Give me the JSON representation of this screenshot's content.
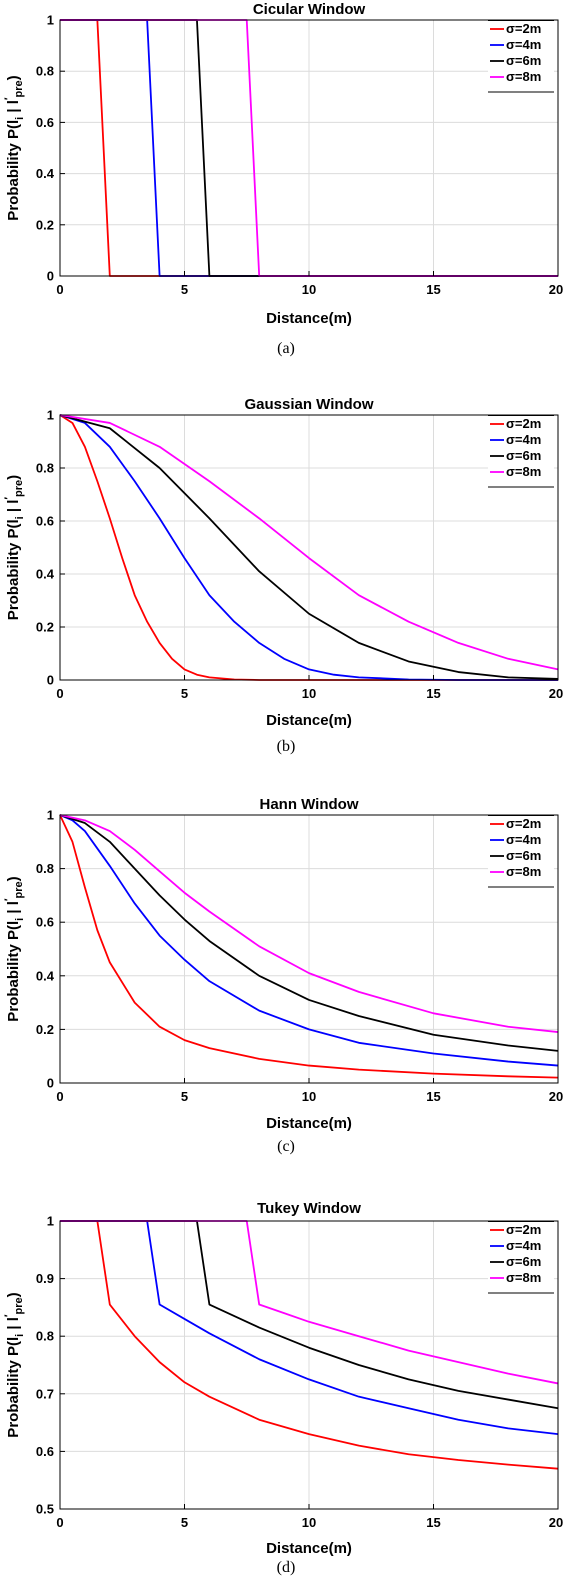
{
  "chart_data": [
    {
      "type": "line",
      "title": "Cicular Window",
      "xlabel": "Distance(m)",
      "ylabel": "Probability P(l_i | l'_pre)",
      "ylabel_main": "Probability P(l",
      "ylabel_sub1": "i",
      "ylabel_mid": " | l",
      "ylabel_sup": "′",
      "ylabel_sub2": "pre",
      "ylabel_end": ")",
      "caption": "(a)",
      "xlim": [
        0,
        20
      ],
      "ylim": [
        0,
        1
      ],
      "xticks": [
        0,
        5,
        10,
        15,
        20
      ],
      "yticks": [
        0,
        0.2,
        0.4,
        0.6,
        0.8,
        1
      ],
      "ytick_labels": [
        "0",
        "0.2",
        "0.4",
        "0.6",
        "0.8",
        "1"
      ],
      "grid": true,
      "legend_position": "top-right",
      "series": [
        {
          "name": "σ=2m",
          "color": "#ff0000",
          "x": [
            0,
            1.5,
            2,
            20
          ],
          "y": [
            1,
            1,
            0,
            0
          ]
        },
        {
          "name": "σ=4m",
          "color": "#0000ff",
          "x": [
            0,
            3.5,
            4,
            20
          ],
          "y": [
            1,
            1,
            0,
            0
          ]
        },
        {
          "name": "σ=6m",
          "color": "#000000",
          "x": [
            0,
            5.5,
            6,
            20
          ],
          "y": [
            1,
            1,
            0,
            0
          ]
        },
        {
          "name": "σ=8m",
          "color": "#ff00ff",
          "x": [
            0,
            7.5,
            8,
            20
          ],
          "y": [
            1,
            1,
            0,
            0
          ]
        }
      ]
    },
    {
      "type": "line",
      "title": "Gaussian Window",
      "xlabel": "Distance(m)",
      "ylabel": "Probability P(l_i | l'_pre)",
      "ylabel_main": "Probability P(l",
      "ylabel_sub1": "i",
      "ylabel_mid": " | l",
      "ylabel_sup": "′",
      "ylabel_sub2": "pre",
      "ylabel_end": ")",
      "caption": "(b)",
      "xlim": [
        0,
        20
      ],
      "ylim": [
        0,
        1
      ],
      "xticks": [
        0,
        5,
        10,
        15,
        20
      ],
      "yticks": [
        0,
        0.2,
        0.4,
        0.6,
        0.8,
        1
      ],
      "ytick_labels": [
        "0",
        "0.2",
        "0.4",
        "0.6",
        "0.8",
        "1"
      ],
      "grid": true,
      "legend_position": "top-right",
      "series": [
        {
          "name": "σ=2m",
          "color": "#ff0000",
          "x": [
            0,
            0.5,
            1,
            1.5,
            2,
            2.5,
            3,
            3.5,
            4,
            4.5,
            5,
            5.5,
            6,
            7,
            8,
            10,
            20
          ],
          "y": [
            1,
            0.97,
            0.88,
            0.75,
            0.61,
            0.46,
            0.32,
            0.22,
            0.14,
            0.08,
            0.04,
            0.02,
            0.01,
            0.002,
            0,
            0,
            0
          ]
        },
        {
          "name": "σ=4m",
          "color": "#0000ff",
          "x": [
            0,
            1,
            2,
            3,
            4,
            5,
            6,
            7,
            8,
            9,
            10,
            11,
            12,
            14,
            16,
            20
          ],
          "y": [
            1,
            0.97,
            0.88,
            0.75,
            0.61,
            0.46,
            0.32,
            0.22,
            0.14,
            0.08,
            0.04,
            0.02,
            0.01,
            0.002,
            0,
            0
          ]
        },
        {
          "name": "σ=6m",
          "color": "#000000",
          "x": [
            0,
            2,
            4,
            6,
            8,
            10,
            12,
            14,
            16,
            18,
            20
          ],
          "y": [
            1,
            0.95,
            0.8,
            0.61,
            0.41,
            0.25,
            0.14,
            0.07,
            0.03,
            0.01,
            0.004
          ]
        },
        {
          "name": "σ=8m",
          "color": "#ff00ff",
          "x": [
            0,
            2,
            4,
            6,
            8,
            10,
            12,
            14,
            16,
            18,
            20
          ],
          "y": [
            1,
            0.97,
            0.88,
            0.75,
            0.61,
            0.46,
            0.32,
            0.22,
            0.14,
            0.08,
            0.04
          ]
        }
      ]
    },
    {
      "type": "line",
      "title": "Hann Window",
      "xlabel": "Distance(m)",
      "ylabel": "Probability P(l_i | l'_pre)",
      "ylabel_main": "Probability P(l",
      "ylabel_sub1": "i",
      "ylabel_mid": " | l",
      "ylabel_sup": "′",
      "ylabel_sub2": "pre",
      "ylabel_end": ")",
      "caption": "(c)",
      "xlim": [
        0,
        20
      ],
      "ylim": [
        0,
        1
      ],
      "xticks": [
        0,
        5,
        10,
        15,
        20
      ],
      "yticks": [
        0,
        0.2,
        0.4,
        0.6,
        0.8,
        1
      ],
      "ytick_labels": [
        "0",
        "0.2",
        "0.4",
        "0.6",
        "0.8",
        "1"
      ],
      "grid": true,
      "legend_position": "top-right",
      "series": [
        {
          "name": "σ=2m",
          "color": "#ff0000",
          "x": [
            0,
            0.5,
            1,
            1.5,
            2,
            3,
            4,
            5,
            6,
            8,
            10,
            12,
            15,
            18,
            20
          ],
          "y": [
            1,
            0.9,
            0.73,
            0.57,
            0.45,
            0.3,
            0.21,
            0.16,
            0.13,
            0.09,
            0.065,
            0.05,
            0.035,
            0.025,
            0.02
          ]
        },
        {
          "name": "σ=4m",
          "color": "#0000ff",
          "x": [
            0,
            0.5,
            1,
            2,
            3,
            4,
            5,
            6,
            8,
            10,
            12,
            15,
            18,
            20
          ],
          "y": [
            1,
            0.98,
            0.94,
            0.81,
            0.67,
            0.55,
            0.46,
            0.38,
            0.27,
            0.2,
            0.15,
            0.11,
            0.08,
            0.065
          ]
        },
        {
          "name": "σ=6m",
          "color": "#000000",
          "x": [
            0,
            1,
            2,
            3,
            4,
            5,
            6,
            8,
            10,
            12,
            15,
            18,
            20
          ],
          "y": [
            1,
            0.97,
            0.9,
            0.8,
            0.7,
            0.61,
            0.53,
            0.4,
            0.31,
            0.25,
            0.18,
            0.14,
            0.12
          ]
        },
        {
          "name": "σ=8m",
          "color": "#ff00ff",
          "x": [
            0,
            1,
            2,
            3,
            4,
            5,
            6,
            8,
            10,
            12,
            15,
            18,
            20
          ],
          "y": [
            1,
            0.98,
            0.94,
            0.87,
            0.79,
            0.71,
            0.64,
            0.51,
            0.41,
            0.34,
            0.26,
            0.21,
            0.19
          ]
        }
      ]
    },
    {
      "type": "line",
      "title": "Tukey Window",
      "xlabel": "Distance(m)",
      "ylabel": "Probability P(l_i | l'_pre)",
      "ylabel_main": "Probability P(l",
      "ylabel_sub1": "i",
      "ylabel_mid": " | l",
      "ylabel_sup": "′",
      "ylabel_sub2": "pre",
      "ylabel_end": ")",
      "caption": "(d)",
      "xlim": [
        0,
        20
      ],
      "ylim": [
        0.5,
        1
      ],
      "xticks": [
        0,
        5,
        10,
        15,
        20
      ],
      "yticks": [
        0.5,
        0.6,
        0.7,
        0.8,
        0.9,
        1
      ],
      "ytick_labels": [
        "0.5",
        "0.6",
        "0.7",
        "0.8",
        "0.9",
        "1"
      ],
      "grid": true,
      "legend_position": "top-right",
      "series": [
        {
          "name": "σ=2m",
          "color": "#ff0000",
          "x": [
            0,
            1.5,
            2,
            3,
            4,
            5,
            6,
            8,
            10,
            12,
            14,
            16,
            18,
            20
          ],
          "y": [
            1,
            1,
            0.855,
            0.8,
            0.755,
            0.72,
            0.695,
            0.655,
            0.63,
            0.61,
            0.595,
            0.585,
            0.577,
            0.57
          ]
        },
        {
          "name": "σ=4m",
          "color": "#0000ff",
          "x": [
            0,
            3.5,
            4,
            5,
            6,
            8,
            10,
            12,
            14,
            16,
            18,
            20
          ],
          "y": [
            1,
            1,
            0.855,
            0.83,
            0.805,
            0.76,
            0.725,
            0.695,
            0.675,
            0.655,
            0.64,
            0.63
          ]
        },
        {
          "name": "σ=6m",
          "color": "#000000",
          "x": [
            0,
            5.5,
            6,
            7,
            8,
            10,
            12,
            14,
            16,
            18,
            20
          ],
          "y": [
            1,
            1,
            0.855,
            0.835,
            0.815,
            0.78,
            0.75,
            0.725,
            0.705,
            0.69,
            0.675
          ]
        },
        {
          "name": "σ=8m",
          "color": "#ff00ff",
          "x": [
            0,
            7.5,
            8,
            9,
            10,
            12,
            14,
            16,
            18,
            20
          ],
          "y": [
            1,
            1,
            0.855,
            0.84,
            0.825,
            0.8,
            0.775,
            0.755,
            0.735,
            0.718
          ]
        }
      ]
    }
  ]
}
